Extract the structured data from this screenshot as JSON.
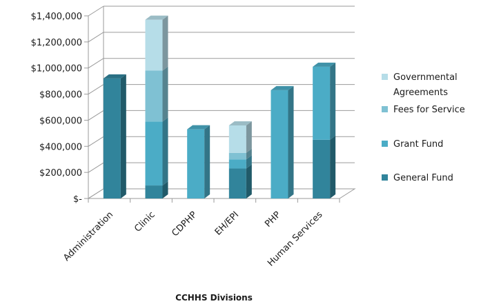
{
  "chart_data": {
    "type": "bar",
    "stacked": true,
    "three_d": true,
    "title": "",
    "xlabel": "CCHHS Divisions",
    "ylabel": "",
    "ylim": [
      0,
      1400000
    ],
    "ytick_values": [
      0,
      200000,
      400000,
      600000,
      800000,
      1000000,
      1200000,
      1400000
    ],
    "ytick_labels": [
      "$-",
      "$200,000",
      "$400,000",
      "$600,000",
      "$800,000",
      "$1,000,000",
      "$1,200,000",
      "$1,400,000"
    ],
    "grid": true,
    "legend_position": "right",
    "categories": [
      "Administration",
      "Clinic",
      "CDPHP",
      "EH/EPI",
      "PHP",
      "Human Services"
    ],
    "series": [
      {
        "name": "General Fund",
        "color": "#31849b",
        "values": [
          920000,
          100000,
          0,
          230000,
          0,
          450000
        ]
      },
      {
        "name": "Grant Fund",
        "color": "#4bacc6",
        "values": [
          0,
          490000,
          530000,
          70000,
          830000,
          560000
        ]
      },
      {
        "name": "Fees for Service",
        "color": "#7fc1d3",
        "values": [
          0,
          390000,
          0,
          50000,
          0,
          0
        ]
      },
      {
        "name": "Governmental Agreements",
        "color": "#b6dde8",
        "values": [
          0,
          390000,
          0,
          210000,
          0,
          0
        ]
      }
    ],
    "legend_order": [
      "Governmental Agreements",
      "Fees for Service",
      "Grant Fund",
      "General Fund"
    ],
    "legend_lines": {
      "Governmental Agreements": [
        "Governmental",
        "Agreements"
      ],
      "Fees for Service": [
        "Fees for Service"
      ],
      "Grant Fund": [
        "Grant Fund"
      ],
      "General Fund": [
        "General Fund"
      ]
    }
  }
}
